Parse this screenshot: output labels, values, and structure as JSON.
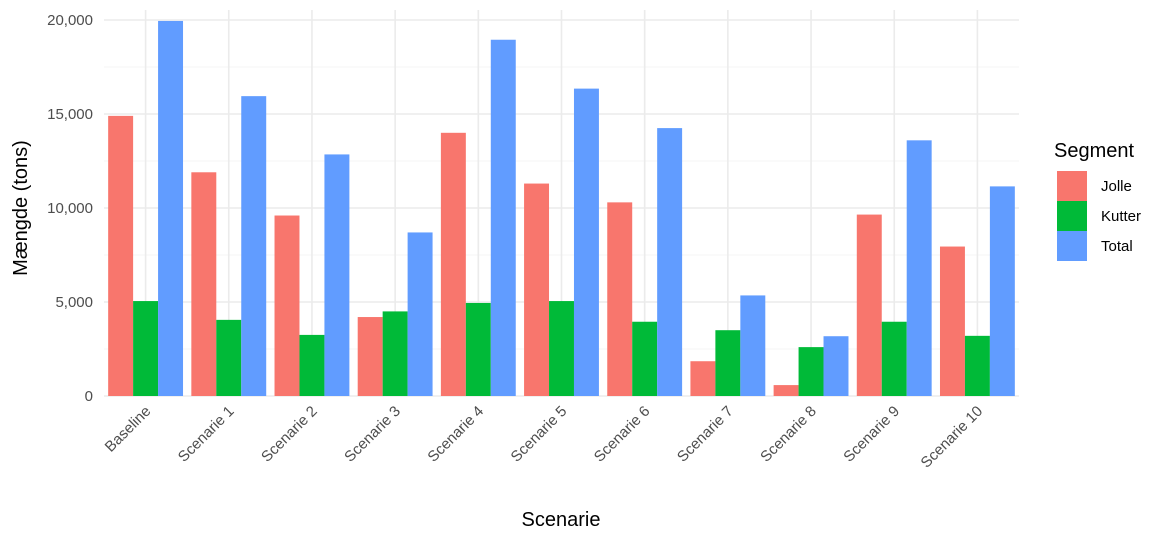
{
  "chart_data": {
    "type": "bar",
    "xlabel": "Scenarie",
    "ylabel": "Mængde (tons)",
    "ylim": [
      0,
      20000
    ],
    "yticks": [
      0,
      5000,
      10000,
      15000,
      20000
    ],
    "ytick_labels": [
      "0",
      "5,000",
      "10,000",
      "15,000",
      "20,000"
    ],
    "grid": true,
    "legend_title": "Segment",
    "legend_position": "right",
    "categories": [
      "Baseline",
      "Scenarie 1",
      "Scenarie 2",
      "Scenarie 3",
      "Scenarie 4",
      "Scenarie 5",
      "Scenarie 6",
      "Scenarie 7",
      "Scenarie 8",
      "Scenarie 9",
      "Scenarie 10"
    ],
    "series": [
      {
        "name": "Jolle",
        "color": "#F8766D",
        "values": [
          14900,
          11900,
          9600,
          4200,
          14000,
          11300,
          10300,
          1850,
          580,
          9650,
          7950
        ]
      },
      {
        "name": "Kutter",
        "color": "#00BA38",
        "values": [
          5050,
          4050,
          3250,
          4500,
          4950,
          5050,
          3950,
          3500,
          2600,
          3950,
          3200
        ]
      },
      {
        "name": "Total",
        "color": "#619CFF",
        "values": [
          19950,
          15950,
          12850,
          8700,
          18950,
          16350,
          14250,
          5350,
          3180,
          13600,
          11150
        ]
      }
    ]
  }
}
